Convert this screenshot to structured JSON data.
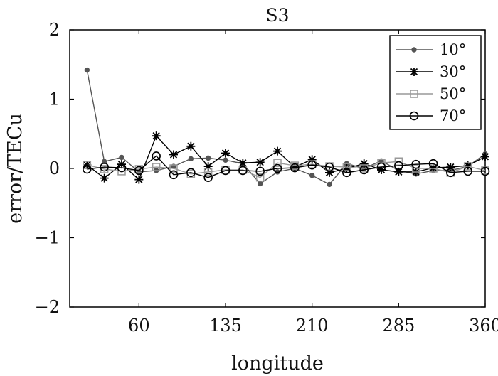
{
  "chart_data": {
    "type": "line",
    "title": "S3",
    "xlabel": "longitude",
    "ylabel": "error/TECu",
    "xlim": [
      0,
      360
    ],
    "ylim": [
      -2,
      2
    ],
    "xticks": [
      60,
      135,
      210,
      285,
      360
    ],
    "yticks": [
      -2,
      -1,
      0,
      1,
      2
    ],
    "xtick_labels": [
      "60",
      "135",
      "210",
      "285",
      "360"
    ],
    "ytick_labels": [
      "−2",
      "−1",
      "0",
      "1",
      "2"
    ],
    "grid": false,
    "legend_position": "top-right",
    "x": [
      15,
      30,
      45,
      60,
      75,
      90,
      105,
      120,
      135,
      150,
      165,
      180,
      195,
      210,
      225,
      240,
      255,
      270,
      285,
      300,
      315,
      330,
      345,
      360
    ],
    "series": [
      {
        "name": "10°",
        "color": "#555555",
        "marker": "dot",
        "values": [
          1.42,
          0.1,
          0.16,
          -0.05,
          -0.03,
          0.03,
          0.14,
          0.15,
          0.12,
          0.07,
          -0.22,
          -0.05,
          0.0,
          -0.1,
          -0.23,
          0.07,
          0.0,
          0.11,
          -0.03,
          -0.08,
          -0.03,
          -0.03,
          0.03,
          0.21
        ]
      },
      {
        "name": "30°",
        "color": "#000000",
        "marker": "star",
        "values": [
          0.05,
          -0.14,
          0.06,
          -0.16,
          0.47,
          0.2,
          0.32,
          0.03,
          0.22,
          0.08,
          0.09,
          0.25,
          0.02,
          0.13,
          -0.06,
          0.0,
          0.07,
          -0.02,
          -0.05,
          -0.05,
          0.01,
          0.02,
          0.04,
          0.17
        ]
      },
      {
        "name": "50°",
        "color": "#999999",
        "marker": "square",
        "values": [
          0.05,
          -0.01,
          -0.04,
          -0.01,
          0.02,
          0.0,
          -0.08,
          -0.05,
          -0.02,
          -0.02,
          -0.13,
          0.08,
          0.04,
          0.06,
          0.03,
          0.02,
          0.0,
          0.08,
          0.1,
          0.0,
          0.0,
          -0.06,
          0.03,
          -0.03
        ]
      },
      {
        "name": "70°",
        "color": "#000000",
        "marker": "circle",
        "values": [
          -0.01,
          0.02,
          0.01,
          -0.03,
          0.18,
          -0.09,
          -0.06,
          -0.13,
          -0.03,
          -0.03,
          -0.04,
          0.0,
          0.01,
          0.05,
          0.02,
          -0.06,
          -0.02,
          0.02,
          0.04,
          0.06,
          0.07,
          -0.06,
          -0.04,
          -0.04
        ]
      }
    ]
  }
}
